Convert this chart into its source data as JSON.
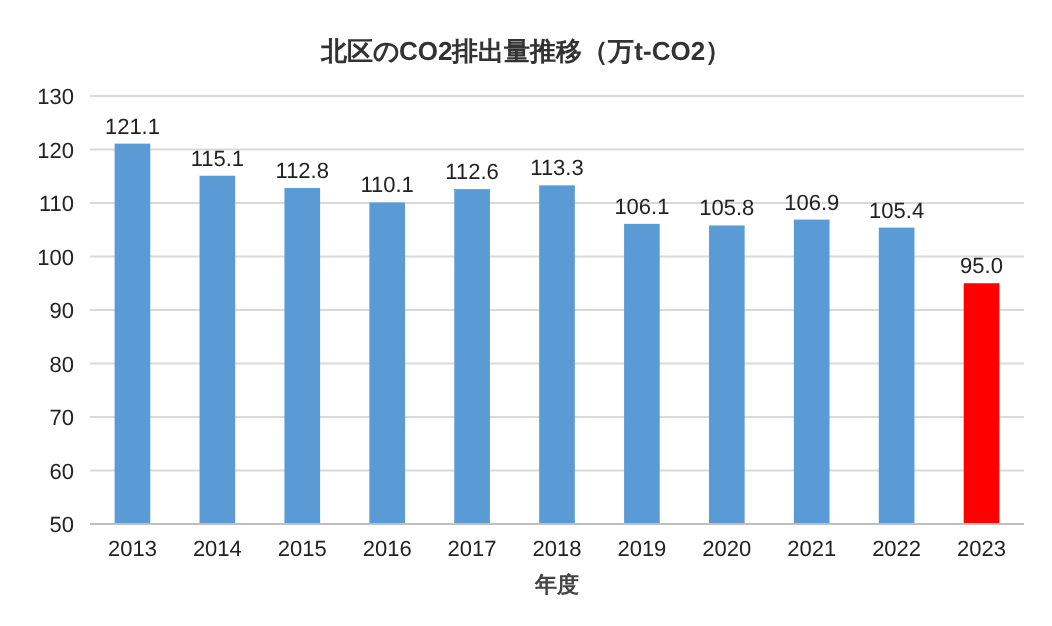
{
  "chart_data": {
    "type": "bar",
    "title": "北区のCO2排出量推移（万t-CO2）",
    "xlabel": "年度",
    "categories": [
      "2013",
      "2014",
      "2015",
      "2016",
      "2017",
      "2018",
      "2019",
      "2020",
      "2021",
      "2022",
      "2023"
    ],
    "values": [
      121.1,
      115.1,
      112.8,
      110.1,
      112.6,
      113.3,
      106.1,
      105.8,
      106.9,
      105.4,
      95.0
    ],
    "value_labels": [
      "121.1",
      "115.1",
      "112.8",
      "110.1",
      "112.6",
      "113.3",
      "106.1",
      "105.8",
      "106.9",
      "105.4",
      "95.0"
    ],
    "colors": [
      "#5b9bd5",
      "#5b9bd5",
      "#5b9bd5",
      "#5b9bd5",
      "#5b9bd5",
      "#5b9bd5",
      "#5b9bd5",
      "#5b9bd5",
      "#5b9bd5",
      "#5b9bd5",
      "#ff0000"
    ],
    "ylim": [
      50,
      130
    ],
    "yticks": [
      50,
      60,
      70,
      80,
      90,
      100,
      110,
      120,
      130
    ],
    "grid": "y"
  }
}
